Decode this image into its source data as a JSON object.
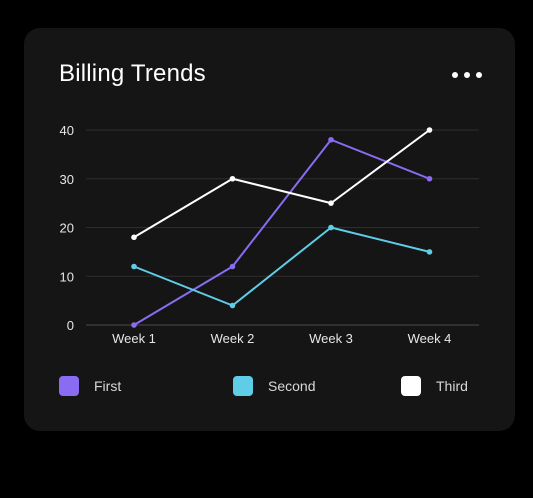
{
  "card": {
    "title": "Billing Trends",
    "menu_icon": "more-horizontal-icon"
  },
  "colors": {
    "background": "#000000",
    "card": "#151515",
    "grid": "#2e2e2e",
    "axis_text": "#e6e6e6",
    "first": "#8a6cf2",
    "second": "#5fcde8",
    "third": "#ffffff"
  },
  "chart_data": {
    "type": "line",
    "title": "Billing Trends",
    "categories": [
      "Week 1",
      "Week 2",
      "Week 3",
      "Week 4"
    ],
    "ylim": [
      0,
      40
    ],
    "yticks": [
      0,
      10,
      20,
      30,
      40
    ],
    "grid": true,
    "legend_position": "bottom",
    "series": [
      {
        "name": "First",
        "color": "#8a6cf2",
        "values": [
          0,
          12,
          38,
          30
        ]
      },
      {
        "name": "Second",
        "color": "#5fcde8",
        "values": [
          12,
          4,
          20,
          15
        ]
      },
      {
        "name": "Third",
        "color": "#ffffff",
        "values": [
          18,
          30,
          25,
          40
        ]
      }
    ]
  }
}
